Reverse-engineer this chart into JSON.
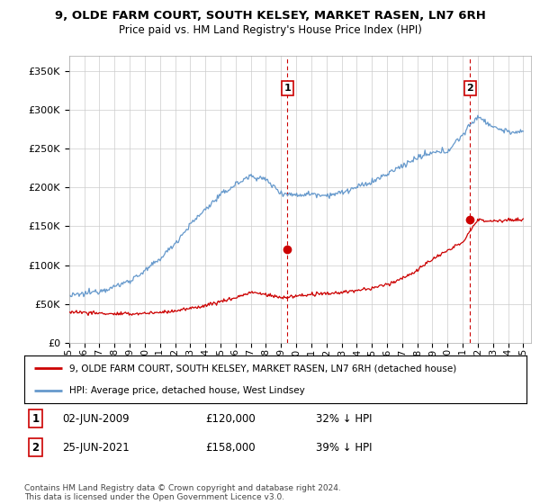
{
  "title": "9, OLDE FARM COURT, SOUTH KELSEY, MARKET RASEN, LN7 6RH",
  "subtitle": "Price paid vs. HM Land Registry's House Price Index (HPI)",
  "ytick_values": [
    0,
    50000,
    100000,
    150000,
    200000,
    250000,
    300000,
    350000
  ],
  "ylim": [
    0,
    370000
  ],
  "xlim_start": 1995.0,
  "xlim_end": 2025.5,
  "legend_line1": "9, OLDE FARM COURT, SOUTH KELSEY, MARKET RASEN, LN7 6RH (detached house)",
  "legend_line2": "HPI: Average price, detached house, West Lindsey",
  "sale1_label": "1",
  "sale1_date": "02-JUN-2009",
  "sale1_price": "£120,000",
  "sale1_hpi": "32% ↓ HPI",
  "sale2_label": "2",
  "sale2_date": "25-JUN-2021",
  "sale2_price": "£158,000",
  "sale2_hpi": "39% ↓ HPI",
  "copyright": "Contains HM Land Registry data © Crown copyright and database right 2024.\nThis data is licensed under the Open Government Licence v3.0.",
  "sale1_x": 2009.42,
  "sale1_y": 120000,
  "sale2_x": 2021.48,
  "sale2_y": 158000,
  "red_color": "#cc0000",
  "blue_color": "#6699cc",
  "vline_color": "#cc0000",
  "grid_color": "#cccccc",
  "background_color": "#ffffff"
}
